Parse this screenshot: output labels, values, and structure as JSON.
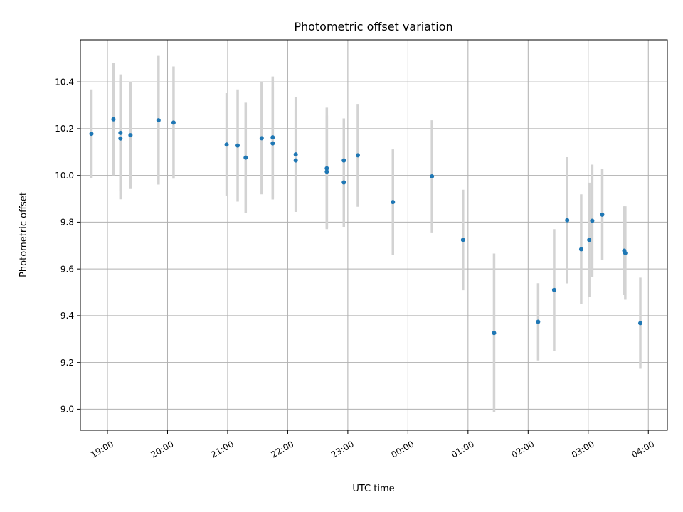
{
  "chart_data": {
    "type": "scatter",
    "title": "Photometric offset variation",
    "xlabel": "UTC time",
    "ylabel": "Photometric offset",
    "x_axis": "time",
    "xlim": [
      "18:33",
      "04:19"
    ],
    "ylim": [
      8.91,
      10.58
    ],
    "xticks": [
      "19:00",
      "20:00",
      "21:00",
      "22:00",
      "23:00",
      "00:00",
      "01:00",
      "02:00",
      "03:00",
      "04:00"
    ],
    "yticks": [
      9.0,
      9.2,
      9.4,
      9.6,
      9.8,
      10.0,
      10.2,
      10.4
    ],
    "grid": true,
    "marker_color": "#1f77b4",
    "errorbar_color": "#d3d3d3",
    "points": [
      {
        "x": "18:44",
        "y": 10.178,
        "yerr": 0.19
      },
      {
        "x": "19:06",
        "y": 10.24,
        "yerr": 0.24
      },
      {
        "x": "19:13",
        "y": 10.182,
        "yerr": 0.25
      },
      {
        "x": "19:13",
        "y": 10.158,
        "yerr": 0.26
      },
      {
        "x": "19:23",
        "y": 10.172,
        "yerr": 0.23
      },
      {
        "x": "19:51",
        "y": 10.236,
        "yerr": 0.275
      },
      {
        "x": "20:06",
        "y": 10.226,
        "yerr": 0.24
      },
      {
        "x": "20:59",
        "y": 10.132,
        "yerr": 0.22
      },
      {
        "x": "21:10",
        "y": 10.128,
        "yerr": 0.24
      },
      {
        "x": "21:18",
        "y": 10.076,
        "yerr": 0.235
      },
      {
        "x": "21:34",
        "y": 10.159,
        "yerr": 0.24
      },
      {
        "x": "21:45",
        "y": 10.163,
        "yerr": 0.26
      },
      {
        "x": "21:45",
        "y": 10.137,
        "yerr": 0.24
      },
      {
        "x": "22:08",
        "y": 10.09,
        "yerr": 0.245
      },
      {
        "x": "22:08",
        "y": 10.064,
        "yerr": 0.22
      },
      {
        "x": "22:39",
        "y": 10.03,
        "yerr": 0.26
      },
      {
        "x": "22:39",
        "y": 10.016,
        "yerr": 0.24
      },
      {
        "x": "22:56",
        "y": 10.064,
        "yerr": 0.18
      },
      {
        "x": "22:56",
        "y": 9.97,
        "yerr": 0.19
      },
      {
        "x": "23:10",
        "y": 10.086,
        "yerr": 0.22
      },
      {
        "x": "23:45",
        "y": 9.886,
        "yerr": 0.225
      },
      {
        "x": "00:24",
        "y": 9.996,
        "yerr": 0.24
      },
      {
        "x": "00:55",
        "y": 9.724,
        "yerr": 0.215
      },
      {
        "x": "01:26",
        "y": 9.326,
        "yerr": 0.34
      },
      {
        "x": "02:10",
        "y": 9.374,
        "yerr": 0.165
      },
      {
        "x": "02:26",
        "y": 9.51,
        "yerr": 0.26
      },
      {
        "x": "02:39",
        "y": 9.808,
        "yerr": 0.27
      },
      {
        "x": "02:53",
        "y": 9.684,
        "yerr": 0.235
      },
      {
        "x": "03:01",
        "y": 9.724,
        "yerr": 0.245
      },
      {
        "x": "03:04",
        "y": 9.806,
        "yerr": 0.24
      },
      {
        "x": "03:14",
        "y": 9.832,
        "yerr": 0.195
      },
      {
        "x": "03:36",
        "y": 9.678,
        "yerr": 0.19
      },
      {
        "x": "03:37",
        "y": 9.668,
        "yerr": 0.2
      },
      {
        "x": "03:52",
        "y": 9.368,
        "yerr": 0.195
      }
    ]
  }
}
